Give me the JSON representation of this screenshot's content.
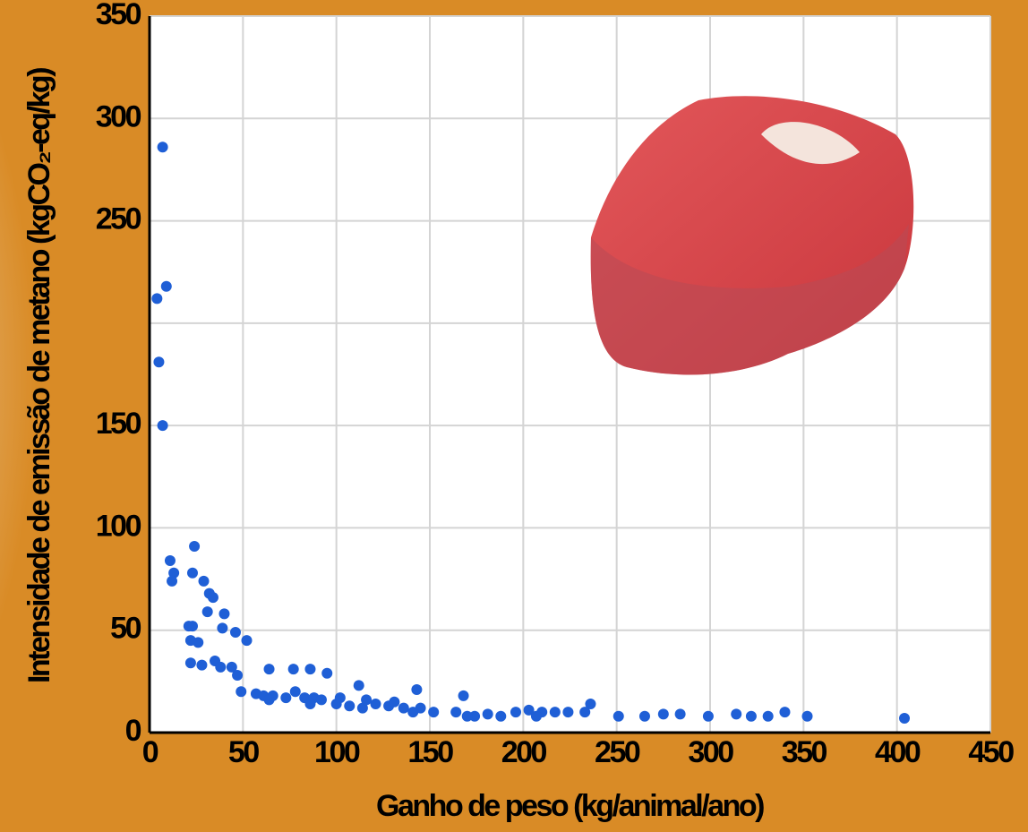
{
  "chart_data": {
    "type": "scatter",
    "xlabel": "Ganho de peso (kg/animal/ano)",
    "ylabel": "Intensidade de emissão de metano (kgCO₂-eq/kg)",
    "color": "#1f5fd6",
    "grid": true,
    "xlim": [
      0,
      450
    ],
    "xticks": [
      0,
      50,
      100,
      150,
      200,
      250,
      300,
      350,
      400,
      450
    ],
    "ylim": [
      0,
      350
    ],
    "yticks": [
      0,
      50,
      100,
      150,
      {
        "value": 200,
        "label": null
      },
      250,
      300,
      350
    ],
    "x": [
      7,
      9,
      4,
      5,
      7,
      24,
      11,
      13,
      12,
      23,
      29,
      32,
      34,
      31,
      40,
      21,
      23,
      22,
      26,
      39,
      46,
      52,
      22,
      28,
      35,
      38,
      44,
      47,
      64,
      77,
      86,
      95,
      112,
      143,
      168,
      49,
      57,
      61,
      66,
      73,
      78,
      83,
      88,
      92,
      100,
      107,
      114,
      121,
      128,
      136,
      145,
      152,
      164,
      174,
      181,
      188,
      196,
      203,
      210,
      217,
      224,
      236,
      233,
      251,
      265,
      275,
      284,
      299,
      314,
      322,
      331,
      340,
      352,
      404,
      64,
      86,
      102,
      116,
      131,
      141,
      170,
      207
    ],
    "y": [
      286,
      218,
      212,
      181,
      150,
      91,
      84,
      78,
      74,
      78,
      74,
      68,
      66,
      59,
      58,
      52,
      52,
      45,
      44,
      51,
      49,
      45,
      34,
      33,
      35,
      32,
      32,
      28,
      31,
      31,
      31,
      29,
      23,
      21,
      18,
      20,
      19,
      18,
      18,
      17,
      20,
      17,
      17,
      16,
      14,
      13,
      12,
      14,
      13,
      12,
      12,
      10,
      10,
      8,
      9,
      8,
      10,
      11,
      10,
      10,
      10,
      14,
      10,
      8,
      8,
      9,
      9,
      8,
      9,
      8,
      8,
      10,
      8,
      7,
      16,
      14,
      17,
      16,
      15,
      10,
      8,
      8
    ]
  }
}
